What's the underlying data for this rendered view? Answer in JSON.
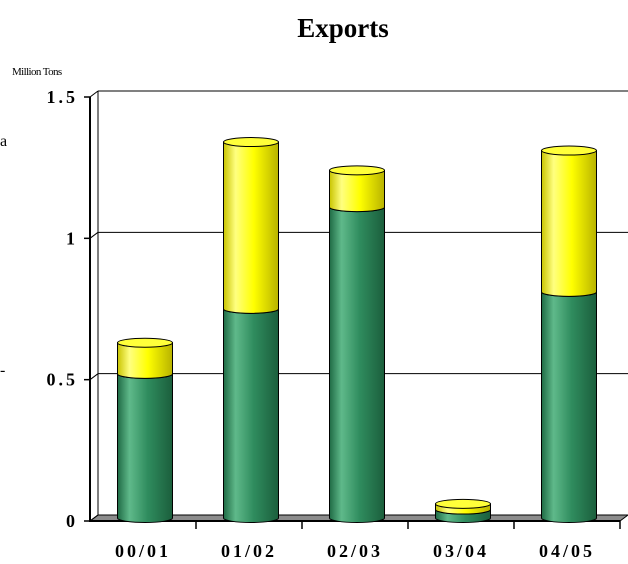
{
  "chart_data": {
    "type": "bar",
    "stacked": true,
    "style": "3d-cylinder",
    "title": "Exports",
    "unit_label": "Million Tons",
    "categories": [
      "00/01",
      "01/02",
      "02/03",
      "03/04",
      "04/05"
    ],
    "series": [
      {
        "values": [
          0.51,
          0.74,
          1.1,
          0.03,
          0.8
        ]
      },
      {
        "values": [
          0.11,
          0.59,
          0.13,
          0.02,
          0.5
        ]
      }
    ],
    "ylim": [
      0,
      1.5
    ],
    "yticks": [
      0,
      0.5,
      1,
      1.5
    ],
    "ytick_labels": [
      "0",
      "0.5",
      "1",
      "1.5"
    ],
    "grid": true,
    "legend": "none",
    "colors": [
      "#2f8c5e",
      "#ffff00"
    ],
    "partial_left_labels": [
      "a",
      "-"
    ]
  }
}
